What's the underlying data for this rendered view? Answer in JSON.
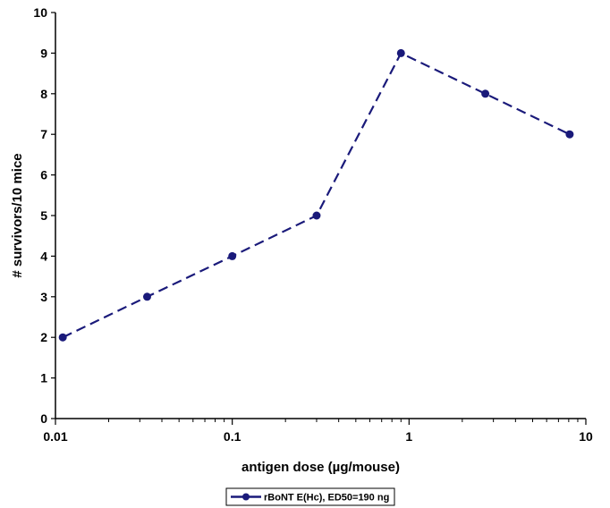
{
  "chart_data": {
    "type": "line",
    "xscale": "log",
    "xlim": [
      0.01,
      10
    ],
    "ylim": [
      0,
      10
    ],
    "xticks": [
      0.01,
      0.1,
      1,
      10
    ],
    "xtick_labels": [
      "0.01",
      "0.1",
      "1",
      "10"
    ],
    "yticks": [
      0,
      1,
      2,
      3,
      4,
      5,
      6,
      7,
      8,
      9,
      10
    ],
    "ytick_labels": [
      "0",
      "1",
      "2",
      "3",
      "4",
      "5",
      "6",
      "7",
      "8",
      "9",
      "10"
    ],
    "xlabel": "antigen dose (µg/mouse)",
    "ylabel": "# survivors/10 mice",
    "grid": false,
    "legend_position": "bottom-center",
    "series": [
      {
        "name": "rBoNT E(Hc), ED50=190 ng",
        "color": "#1a1a7a",
        "line_style": "dashed",
        "marker": "circle",
        "x": [
          0.011,
          0.033,
          0.1,
          0.3,
          0.9,
          2.7,
          8.1
        ],
        "y": [
          2,
          3,
          4,
          5,
          9,
          8,
          7
        ]
      }
    ]
  }
}
